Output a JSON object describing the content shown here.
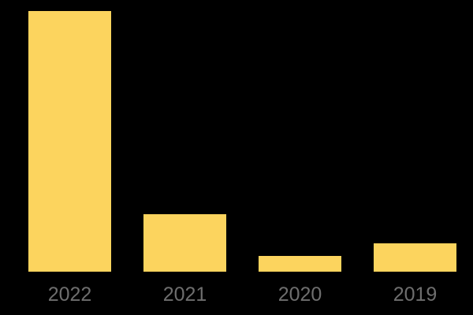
{
  "chart_data": {
    "type": "bar",
    "title": "",
    "xlabel": "",
    "ylabel": "",
    "categories": [
      "2022",
      "2021",
      "2020",
      "2019"
    ],
    "values": [
      100,
      22,
      6,
      11
    ],
    "value_units": "relative bar height, percent of max (no value axis or data labels shown)",
    "ylim": [
      0,
      100
    ],
    "grid": false,
    "legend": false,
    "bar_color": "#FCD45E",
    "label_color": "#6E6E6E",
    "background_color": "#000000"
  }
}
